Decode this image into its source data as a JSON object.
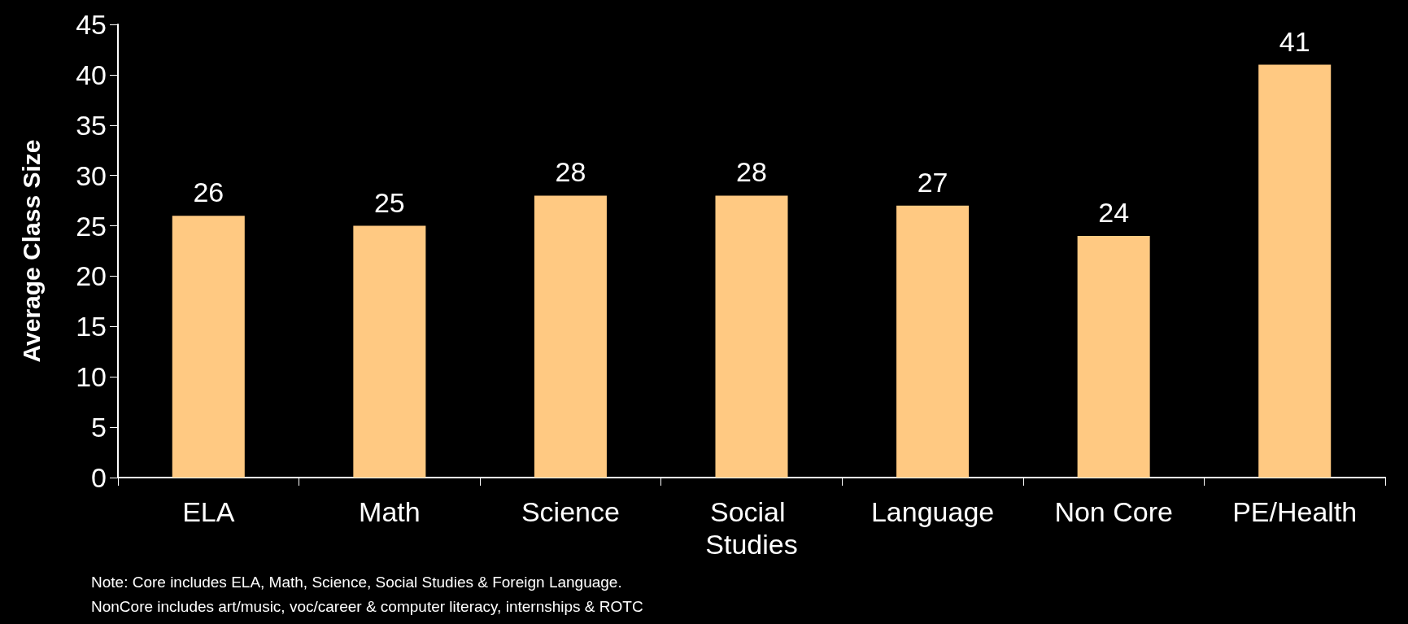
{
  "chart_data": {
    "type": "bar",
    "ylabel": "Average Class Size",
    "categories": [
      "ELA",
      "Math",
      "Science",
      "Social Studies",
      "Language",
      "Non Core",
      "PE/Health"
    ],
    "values": [
      26,
      25,
      28,
      28,
      27,
      24,
      41
    ],
    "color": "#ffc982",
    "ylim": [
      0,
      45
    ],
    "yticks": [
      0,
      5,
      10,
      15,
      20,
      25,
      30,
      35,
      40,
      45
    ],
    "grid": false,
    "data_labels": true,
    "annotations": [
      "Note: Core includes ELA, Math, Science, Social Studies & Foreign Language.",
      "NonCore includes art/music, voc/career & computer literacy, internships & ROTC"
    ]
  }
}
